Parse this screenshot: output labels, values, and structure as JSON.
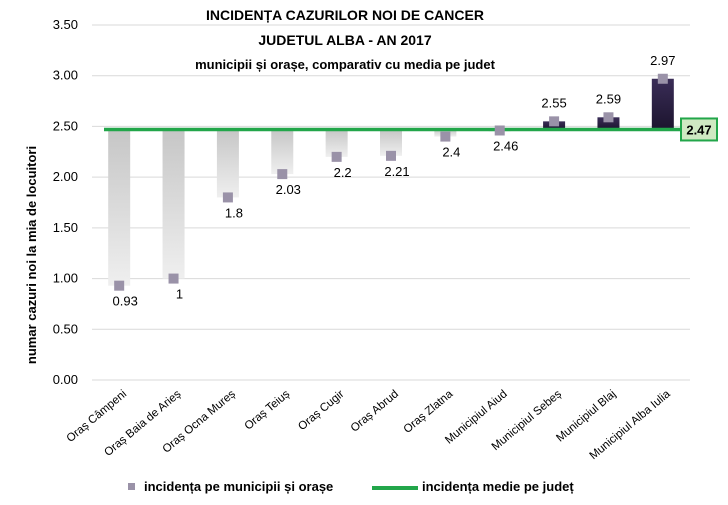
{
  "chart_data": {
    "type": "bar",
    "title_lines": [
      "INCIDENȚA CAZURILOR NOI DE CANCER",
      "JUDETUL ALBA - AN 2017",
      "municipii și orașe, comparativ cu media pe judet"
    ],
    "ylabel": "numar cazuri noi la mia de locuitori",
    "xlabel": "",
    "ylim": [
      0,
      3.5
    ],
    "y_ticks": [
      "0.00",
      "0.50",
      "1.00",
      "1.50",
      "2.00",
      "2.50",
      "3.00",
      "3.50"
    ],
    "grid": true,
    "categories": [
      "Oraș Câmpeni",
      "Oraș Baia de Arieș",
      "Oraș Ocna Mureș",
      "Oraș Teiuș",
      "Oraș Cugir",
      "Oraș Abrud",
      "Oraș Zlatna",
      "Municipiul Aiud",
      "Municipiul Sebeș",
      "Municipiul Blaj",
      "Municipiul Alba Iulia"
    ],
    "series": [
      {
        "name": "incidența pe municipii și orașe",
        "values": [
          0.93,
          1,
          1.8,
          2.03,
          2.2,
          2.21,
          2.4,
          2.46,
          2.55,
          2.59,
          2.97
        ],
        "value_labels": [
          "0.93",
          "1",
          "1.8",
          "2.03",
          "2.2",
          "2.21",
          "2.4",
          "2.46",
          "2.55",
          "2.59",
          "2.97"
        ]
      },
      {
        "name": "incidența medie pe județ",
        "type": "line",
        "value": 2.47,
        "value_label": "2.47"
      }
    ],
    "legend_position": "bottom",
    "colors": {
      "below_average_bar": "#c8c8c8",
      "above_average_bar": "#2b1f44",
      "marker": "#9a92a8",
      "average_line": "#22a64a",
      "grid": "#d9d9d9"
    }
  }
}
